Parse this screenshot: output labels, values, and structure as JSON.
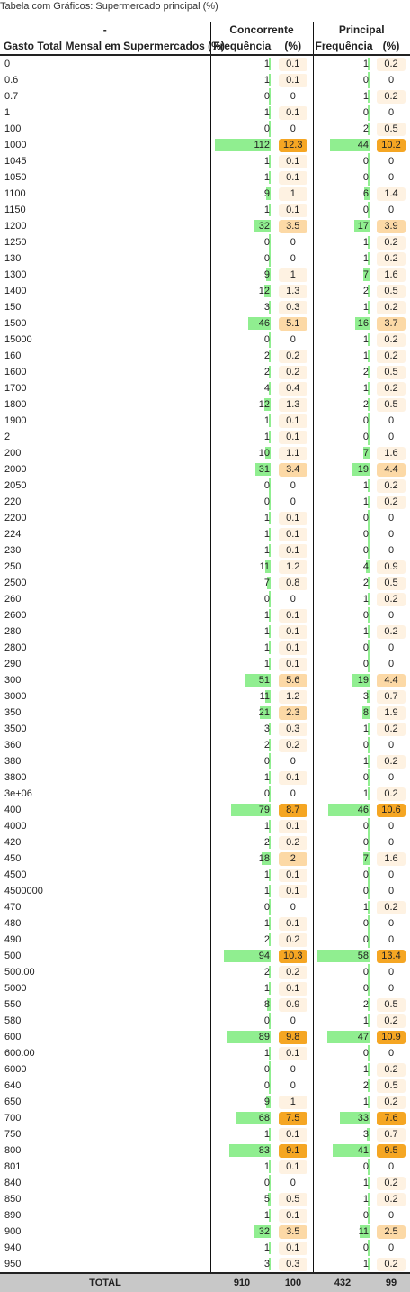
{
  "caption": "Tabela com Gráficos: Supermercado principal (%)",
  "header": {
    "dash": "-",
    "group1": "Concorrente",
    "group2": "Principal",
    "rowLabel": "Gasto Total Mensal em Supermercados (%)",
    "freq": "Frequência",
    "pct": "(%)"
  },
  "colors": {
    "bar": "#90ee90",
    "pctHigh": "#f5a623",
    "pctMid": "#fcd9a6",
    "pctLow": "#fef2e2",
    "total_bg": "#c8c8c8"
  },
  "rows": [
    [
      "0",
      "1",
      "0.1",
      "1",
      "0.2"
    ],
    [
      "0.6",
      "1",
      "0.1",
      "0",
      "0"
    ],
    [
      "0.7",
      "0",
      "0",
      "1",
      "0.2"
    ],
    [
      "1",
      "1",
      "0.1",
      "0",
      "0"
    ],
    [
      "100",
      "0",
      "0",
      "2",
      "0.5"
    ],
    [
      "1000",
      "112",
      "12.3",
      "44",
      "10.2"
    ],
    [
      "1045",
      "1",
      "0.1",
      "0",
      "0"
    ],
    [
      "1050",
      "1",
      "0.1",
      "0",
      "0"
    ],
    [
      "1100",
      "9",
      "1",
      "6",
      "1.4"
    ],
    [
      "1150",
      "1",
      "0.1",
      "0",
      "0"
    ],
    [
      "1200",
      "32",
      "3.5",
      "17",
      "3.9"
    ],
    [
      "1250",
      "0",
      "0",
      "1",
      "0.2"
    ],
    [
      "130",
      "0",
      "0",
      "1",
      "0.2"
    ],
    [
      "1300",
      "9",
      "1",
      "7",
      "1.6"
    ],
    [
      "1400",
      "12",
      "1.3",
      "2",
      "0.5"
    ],
    [
      "150",
      "3",
      "0.3",
      "1",
      "0.2"
    ],
    [
      "1500",
      "46",
      "5.1",
      "16",
      "3.7"
    ],
    [
      "15000",
      "0",
      "0",
      "1",
      "0.2"
    ],
    [
      "160",
      "2",
      "0.2",
      "1",
      "0.2"
    ],
    [
      "1600",
      "2",
      "0.2",
      "2",
      "0.5"
    ],
    [
      "1700",
      "4",
      "0.4",
      "1",
      "0.2"
    ],
    [
      "1800",
      "12",
      "1.3",
      "2",
      "0.5"
    ],
    [
      "1900",
      "1",
      "0.1",
      "0",
      "0"
    ],
    [
      "2",
      "1",
      "0.1",
      "0",
      "0"
    ],
    [
      "200",
      "10",
      "1.1",
      "7",
      "1.6"
    ],
    [
      "2000",
      "31",
      "3.4",
      "19",
      "4.4"
    ],
    [
      "2050",
      "0",
      "0",
      "1",
      "0.2"
    ],
    [
      "220",
      "0",
      "0",
      "1",
      "0.2"
    ],
    [
      "2200",
      "1",
      "0.1",
      "0",
      "0"
    ],
    [
      "224",
      "1",
      "0.1",
      "0",
      "0"
    ],
    [
      "230",
      "1",
      "0.1",
      "0",
      "0"
    ],
    [
      "250",
      "11",
      "1.2",
      "4",
      "0.9"
    ],
    [
      "2500",
      "7",
      "0.8",
      "2",
      "0.5"
    ],
    [
      "260",
      "0",
      "0",
      "1",
      "0.2"
    ],
    [
      "2600",
      "1",
      "0.1",
      "0",
      "0"
    ],
    [
      "280",
      "1",
      "0.1",
      "1",
      "0.2"
    ],
    [
      "2800",
      "1",
      "0.1",
      "0",
      "0"
    ],
    [
      "290",
      "1",
      "0.1",
      "0",
      "0"
    ],
    [
      "300",
      "51",
      "5.6",
      "19",
      "4.4"
    ],
    [
      "3000",
      "11",
      "1.2",
      "3",
      "0.7"
    ],
    [
      "350",
      "21",
      "2.3",
      "8",
      "1.9"
    ],
    [
      "3500",
      "3",
      "0.3",
      "1",
      "0.2"
    ],
    [
      "360",
      "2",
      "0.2",
      "0",
      "0"
    ],
    [
      "380",
      "0",
      "0",
      "1",
      "0.2"
    ],
    [
      "3800",
      "1",
      "0.1",
      "0",
      "0"
    ],
    [
      "3e+06",
      "0",
      "0",
      "1",
      "0.2"
    ],
    [
      "400",
      "79",
      "8.7",
      "46",
      "10.6"
    ],
    [
      "4000",
      "1",
      "0.1",
      "0",
      "0"
    ],
    [
      "420",
      "2",
      "0.2",
      "0",
      "0"
    ],
    [
      "450",
      "18",
      "2",
      "7",
      "1.6"
    ],
    [
      "4500",
      "1",
      "0.1",
      "0",
      "0"
    ],
    [
      "4500000",
      "1",
      "0.1",
      "0",
      "0"
    ],
    [
      "470",
      "0",
      "0",
      "1",
      "0.2"
    ],
    [
      "480",
      "1",
      "0.1",
      "0",
      "0"
    ],
    [
      "490",
      "2",
      "0.2",
      "0",
      "0"
    ],
    [
      "500",
      "94",
      "10.3",
      "58",
      "13.4"
    ],
    [
      "500.00",
      "2",
      "0.2",
      "0",
      "0"
    ],
    [
      "5000",
      "1",
      "0.1",
      "0",
      "0"
    ],
    [
      "550",
      "8",
      "0.9",
      "2",
      "0.5"
    ],
    [
      "580",
      "0",
      "0",
      "1",
      "0.2"
    ],
    [
      "600",
      "89",
      "9.8",
      "47",
      "10.9"
    ],
    [
      "600.00",
      "1",
      "0.1",
      "0",
      "0"
    ],
    [
      "6000",
      "0",
      "0",
      "1",
      "0.2"
    ],
    [
      "640",
      "0",
      "0",
      "2",
      "0.5"
    ],
    [
      "650",
      "9",
      "1",
      "1",
      "0.2"
    ],
    [
      "700",
      "68",
      "7.5",
      "33",
      "7.6"
    ],
    [
      "750",
      "1",
      "0.1",
      "3",
      "0.7"
    ],
    [
      "800",
      "83",
      "9.1",
      "41",
      "9.5"
    ],
    [
      "801",
      "1",
      "0.1",
      "0",
      "0"
    ],
    [
      "840",
      "0",
      "0",
      "1",
      "0.2"
    ],
    [
      "850",
      "5",
      "0.5",
      "1",
      "0.2"
    ],
    [
      "890",
      "1",
      "0.1",
      "0",
      "0"
    ],
    [
      "900",
      "32",
      "3.5",
      "11",
      "2.5"
    ],
    [
      "940",
      "1",
      "0.1",
      "0",
      "0"
    ],
    [
      "950",
      "3",
      "0.3",
      "1",
      "0.2"
    ]
  ],
  "total": {
    "label": "TOTAL",
    "f1": "910",
    "p1": "100",
    "f2": "432",
    "p2": "99"
  }
}
